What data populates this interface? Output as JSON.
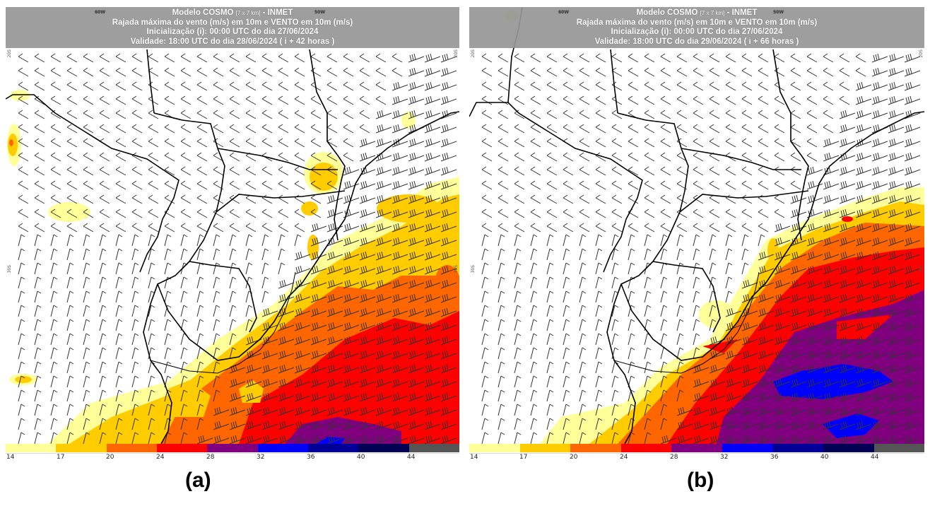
{
  "figure": {
    "caption_a": "(a)",
    "caption_b": "(b)"
  },
  "panels": [
    {
      "id": "a",
      "title_model": "Modelo COSMO",
      "title_grid": "[7 x 7 km]",
      "title_org": "- INMET",
      "line2": "Rajada máxima do vento (m/s) em 10m e VENTO em 10m (m/s)",
      "line3": "Inicialização (i): 00:00 UTC do dia 27/06/2024",
      "line4": "Validade: 18:00 UTC do dia 28/06/2024 ( i + 42 horas )",
      "lat_label_top": "20S",
      "lat_label_mid": "30S",
      "lon_label_left": "60W",
      "lon_label_right": "50W",
      "forecast_hour": 42
    },
    {
      "id": "b",
      "title_model": "Modelo COSMO",
      "title_grid": "[7 x 7 km]",
      "title_org": "- INMET",
      "line2": "Rajada máxima do vento (m/s) em 10m e VENTO em 10m (m/s)",
      "line3": "Inicialização (i): 00:00 UTC do dia 27/06/2024",
      "line4": "Validade: 18:00 UTC do dia 29/06/2024 ( i + 66 horas )",
      "lat_label_top": "20S",
      "lat_label_mid": "30S",
      "lon_label_left": "60W",
      "lon_label_right": "50W",
      "forecast_hour": 66
    }
  ],
  "colorbar": {
    "unit": "m/s",
    "ticks": [
      "14",
      "17",
      "20",
      "24",
      "28",
      "32",
      "36",
      "40",
      "44"
    ],
    "colors": [
      "#ffff99",
      "#ffcc00",
      "#ff6600",
      "#ff0000",
      "#800080",
      "#0000ff",
      "#000099",
      "#000055",
      "#555555"
    ]
  },
  "chart_data": [
    {
      "type": "heatmap",
      "title": "Modelo COSMO [7 x 7 km] - INMET — Rajada máxima do vento (m/s) em 10m e VENTO em 10m (m/s)",
      "subtitle": "Inicialização (i): 00:00 UTC do dia 27/06/2024 — Validade: 18:00 UTC do dia 28/06/2024 ( i + 42 horas )",
      "legend_levels": [
        14,
        17,
        20,
        24,
        28,
        32,
        36,
        40,
        44
      ],
      "legend_colors": [
        "#ffff99",
        "#ffcc00",
        "#ff6600",
        "#ff0000",
        "#800080",
        "#0000ff",
        "#000099",
        "#000055",
        "#555555"
      ],
      "max_gust_class_approx": "32-36 m/s (small blue patch at southern edge)",
      "dominant_offshore_class": "24-28 m/s over ocean south-east of Uruguay / Rio Grande do Sul",
      "lat_labels": [
        "20S",
        "30S"
      ],
      "lon_labels": [
        "60W",
        "50W"
      ]
    },
    {
      "type": "heatmap",
      "title": "Modelo COSMO [7 x 7 km] - INMET — Rajada máxima do vento (m/s) em 10m e VENTO em 10m (m/s)",
      "subtitle": "Inicialização (i): 00:00 UTC do dia 27/06/2024 — Validade: 18:00 UTC do dia 29/06/2024 ( i + 66 horas )",
      "legend_levels": [
        14,
        17,
        20,
        24,
        28,
        32,
        36,
        40,
        44
      ],
      "legend_colors": [
        "#ffff99",
        "#ffcc00",
        "#ff6600",
        "#ff0000",
        "#800080",
        "#0000ff",
        "#000099",
        "#000055",
        "#555555"
      ],
      "max_gust_class_approx": "32-36 m/s (blue patches over ocean)",
      "dominant_offshore_class": "28-32 m/s over ocean off Rio Grande do Sul",
      "lat_labels": [
        "20S",
        "30S"
      ],
      "lon_labels": [
        "60W",
        "50W"
      ]
    }
  ]
}
